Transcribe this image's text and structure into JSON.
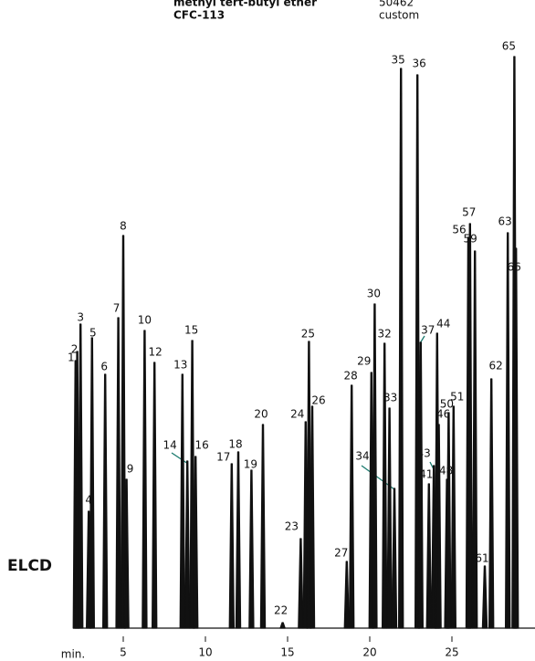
{
  "chart_data": {
    "type": "chromatogram",
    "annotations": [
      "methyl tert-butyl ether",
      "CFC-113",
      "50462",
      "custom"
    ],
    "detector": "ELCD",
    "x_label": "min.",
    "xlim": [
      2,
      30
    ],
    "xticks": [
      5,
      10,
      15,
      20,
      25
    ],
    "ylim": [
      0,
      640
    ],
    "peaks": [
      {
        "label": "1",
        "x": 2.1,
        "height": 293
      },
      {
        "label": "2",
        "x": 2.2,
        "height": 303
      },
      {
        "label": "3",
        "x": 2.4,
        "height": 333
      },
      {
        "label": "4",
        "x": 2.9,
        "height": 128
      },
      {
        "label": "5",
        "x": 3.1,
        "height": 318
      },
      {
        "label": "6",
        "x": 3.9,
        "height": 278
      },
      {
        "label": "7",
        "x": 4.7,
        "height": 340
      },
      {
        "label": "8",
        "x": 5.0,
        "height": 430
      },
      {
        "label": "9",
        "x": 5.2,
        "height": 163
      },
      {
        "label": "10",
        "x": 6.3,
        "height": 326
      },
      {
        "label": "12",
        "x": 6.9,
        "height": 291
      },
      {
        "label": "13",
        "x": 8.6,
        "height": 278
      },
      {
        "label": "14",
        "x": 8.9,
        "height": 183
      },
      {
        "label": "15",
        "x": 9.2,
        "height": 315
      },
      {
        "label": "16",
        "x": 9.4,
        "height": 188
      },
      {
        "label": "17",
        "x": 11.6,
        "height": 180
      },
      {
        "label": "18",
        "x": 12.0,
        "height": 193
      },
      {
        "label": "19",
        "x": 12.8,
        "height": 173
      },
      {
        "label": "20",
        "x": 13.5,
        "height": 223
      },
      {
        "label": "22",
        "x": 14.7,
        "height": 6
      },
      {
        "label": "23",
        "x": 15.8,
        "height": 98
      },
      {
        "label": "24",
        "x": 16.1,
        "height": 226
      },
      {
        "label": "25",
        "x": 16.3,
        "height": 314
      },
      {
        "label": "26",
        "x": 16.5,
        "height": 243
      },
      {
        "label": "27",
        "x": 18.6,
        "height": 73
      },
      {
        "label": "28",
        "x": 18.9,
        "height": 266
      },
      {
        "label": "29",
        "x": 20.1,
        "height": 280
      },
      {
        "label": "30",
        "x": 20.3,
        "height": 355
      },
      {
        "label": "32",
        "x": 20.9,
        "height": 312
      },
      {
        "label": "33",
        "x": 21.2,
        "height": 241
      },
      {
        "label": "34",
        "x": 21.5,
        "height": 153
      },
      {
        "label": "35",
        "x": 21.9,
        "height": 613
      },
      {
        "label": "36",
        "x": 22.9,
        "height": 606
      },
      {
        "label": "37",
        "x": 23.1,
        "height": 313
      },
      {
        "label": "41",
        "x": 23.6,
        "height": 158
      },
      {
        "label": "43",
        "x": 23.9,
        "height": 178
      },
      {
        "label": "44",
        "x": 24.1,
        "height": 323
      },
      {
        "label": "46",
        "x": 24.2,
        "height": 223
      },
      {
        "label": "48",
        "x": 24.7,
        "height": 163
      },
      {
        "label": "50",
        "x": 24.8,
        "height": 236
      },
      {
        "label": "51",
        "x": 25.1,
        "height": 243
      },
      {
        "label": "56",
        "x": 26.0,
        "height": 428
      },
      {
        "label": "57",
        "x": 26.1,
        "height": 443
      },
      {
        "label": "59",
        "x": 26.4,
        "height": 413
      },
      {
        "label": "61",
        "x": 27.0,
        "height": 68
      },
      {
        "label": "62",
        "x": 27.4,
        "height": 273
      },
      {
        "label": "63",
        "x": 28.4,
        "height": 433
      },
      {
        "label": "65",
        "x": 28.8,
        "height": 626
      },
      {
        "label": "66",
        "x": 28.9,
        "height": 416
      }
    ]
  }
}
